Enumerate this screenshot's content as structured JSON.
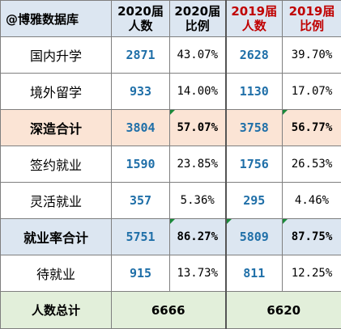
{
  "header": {
    "brand": "@博雅数据库",
    "col_2020_count": [
      "2020届",
      "人数"
    ],
    "col_2020_ratio": [
      "2020届",
      "比例"
    ],
    "col_2019_count": [
      "2019届",
      "人数"
    ],
    "col_2019_ratio": [
      "2019届",
      "比例"
    ]
  },
  "rows": [
    {
      "label": "国内升学",
      "c2020": "2871",
      "r2020": "43.07%",
      "c2019": "2628",
      "r2019": "39.70%"
    },
    {
      "label": "境外留学",
      "c2020": "933",
      "r2020": "14.00%",
      "c2019": "1130",
      "r2019": "17.07%"
    },
    {
      "label": "深造合计",
      "c2020": "3804",
      "r2020": "57.07%",
      "c2019": "3758",
      "r2019": "56.77%"
    },
    {
      "label": "签约就业",
      "c2020": "1590",
      "r2020": "23.85%",
      "c2019": "1756",
      "r2019": "26.53%"
    },
    {
      "label": "灵活就业",
      "c2020": "357",
      "r2020": "5.36%",
      "c2019": "295",
      "r2019": "4.46%"
    },
    {
      "label": "就业率合计",
      "c2020": "5751",
      "r2020": "86.27%",
      "c2019": "5809",
      "r2019": "87.75%"
    },
    {
      "label": "待就业",
      "c2020": "915",
      "r2020": "13.73%",
      "c2019": "811",
      "r2019": "12.25%"
    }
  ],
  "total": {
    "label": "人数总计",
    "t2020": "6666",
    "t2019": "6620"
  },
  "colors": {
    "header_bg": "#dce6f1",
    "subtotal_shen_bg": "#fbe4d5",
    "subtotal_jiuye_bg": "#dce6f1",
    "total_bg": "#e2efda",
    "number_blue": "#1f6fa8",
    "year_2019_red": "#c00000",
    "comment_marker_green": "#1a8a3a"
  }
}
